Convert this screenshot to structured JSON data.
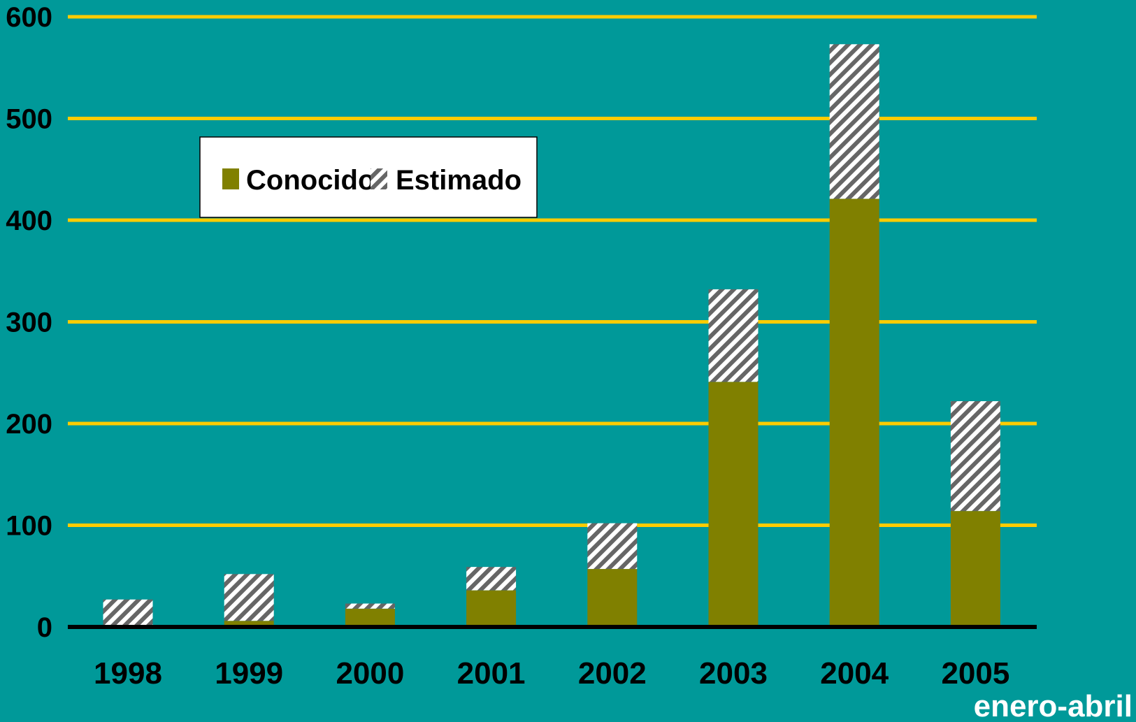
{
  "chart_data": {
    "type": "bar",
    "stacked": true,
    "categories": [
      "1998",
      "1999",
      "2000",
      "2001",
      "2002",
      "2003",
      "2004",
      "2005"
    ],
    "series": [
      {
        "name": "Conocido",
        "values": [
          0,
          6,
          18,
          36,
          57,
          241,
          421,
          114
        ],
        "color": "#808000",
        "pattern": "solid"
      },
      {
        "name": "Estimado",
        "values": [
          27,
          46,
          5,
          23,
          45,
          91,
          152,
          108
        ],
        "color": "#ffffff",
        "pattern": "diagonal-hatch"
      }
    ],
    "ylim": [
      0,
      600
    ],
    "yticks": [
      "0",
      "100",
      "200",
      "300",
      "400",
      "500",
      "600"
    ],
    "grid": true,
    "grid_color": "#ffcc00",
    "baseline_color": "#000000",
    "background": "#009999",
    "legend_position": "top-left",
    "annotation": "enero-abril",
    "xlabel": "",
    "ylabel": "",
    "title": ""
  }
}
